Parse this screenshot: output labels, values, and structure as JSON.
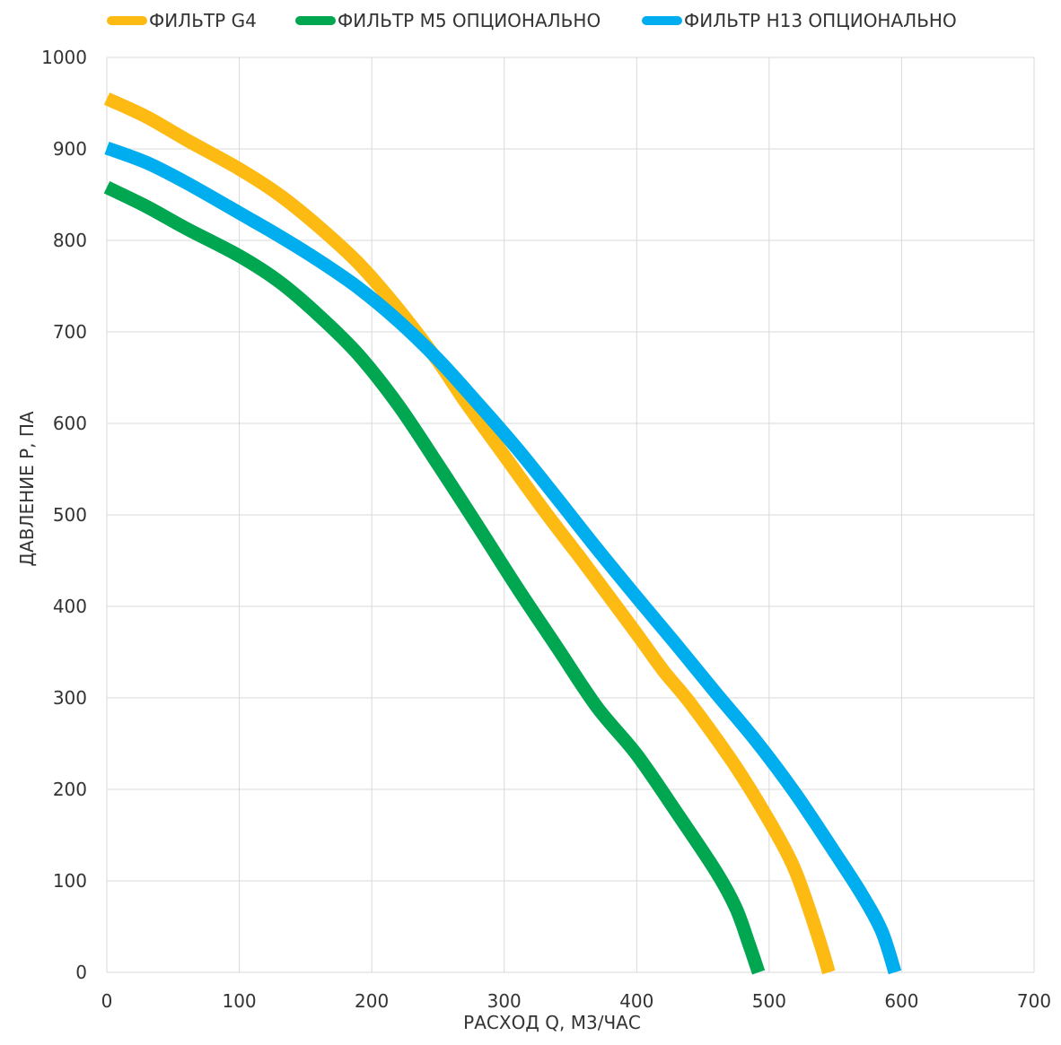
{
  "chart_data": {
    "type": "line",
    "xlabel": "РАСХОД Q, М3/ЧАС",
    "ylabel": "ДАВЛЕНИЕ P, ПА",
    "xlim": [
      0,
      700
    ],
    "ylim": [
      0,
      1000
    ],
    "x_ticks": [
      0,
      100,
      200,
      300,
      400,
      500,
      600,
      700
    ],
    "y_ticks": [
      0,
      100,
      200,
      300,
      400,
      500,
      600,
      700,
      800,
      900,
      1000
    ],
    "grid": true,
    "legend_position": "top",
    "series": [
      {
        "name": "ФИЛЬТР G4",
        "color": "#FDBA12",
        "points": [
          [
            0,
            955
          ],
          [
            30,
            935
          ],
          [
            60,
            910
          ],
          [
            100,
            878
          ],
          [
            130,
            850
          ],
          [
            160,
            815
          ],
          [
            190,
            775
          ],
          [
            220,
            725
          ],
          [
            250,
            668
          ],
          [
            270,
            625
          ],
          [
            300,
            565
          ],
          [
            330,
            505
          ],
          [
            360,
            448
          ],
          [
            400,
            370
          ],
          [
            420,
            330
          ],
          [
            440,
            295
          ],
          [
            470,
            235
          ],
          [
            490,
            190
          ],
          [
            510,
            140
          ],
          [
            520,
            110
          ],
          [
            530,
            70
          ],
          [
            540,
            25
          ],
          [
            545,
            0
          ]
        ]
      },
      {
        "name": "ФИЛЬТР М5 ОПЦИОНАЛЬНО",
        "color": "#00A650",
        "points": [
          [
            0,
            858
          ],
          [
            30,
            837
          ],
          [
            60,
            813
          ],
          [
            100,
            783
          ],
          [
            130,
            755
          ],
          [
            160,
            718
          ],
          [
            190,
            675
          ],
          [
            220,
            620
          ],
          [
            250,
            555
          ],
          [
            280,
            488
          ],
          [
            310,
            420
          ],
          [
            340,
            355
          ],
          [
            370,
            290
          ],
          [
            400,
            238
          ],
          [
            430,
            175
          ],
          [
            460,
            110
          ],
          [
            475,
            70
          ],
          [
            485,
            30
          ],
          [
            492,
            0
          ]
        ]
      },
      {
        "name": "ФИЛЬТР H13 ОПЦИОНАЛЬНО",
        "color": "#00AEEF",
        "points": [
          [
            0,
            901
          ],
          [
            30,
            885
          ],
          [
            60,
            863
          ],
          [
            100,
            830
          ],
          [
            130,
            805
          ],
          [
            160,
            778
          ],
          [
            190,
            748
          ],
          [
            220,
            712
          ],
          [
            250,
            670
          ],
          [
            280,
            622
          ],
          [
            310,
            572
          ],
          [
            340,
            518
          ],
          [
            370,
            463
          ],
          [
            400,
            410
          ],
          [
            430,
            358
          ],
          [
            460,
            305
          ],
          [
            490,
            253
          ],
          [
            520,
            195
          ],
          [
            550,
            130
          ],
          [
            570,
            85
          ],
          [
            585,
            45
          ],
          [
            595,
            0
          ]
        ]
      }
    ]
  }
}
